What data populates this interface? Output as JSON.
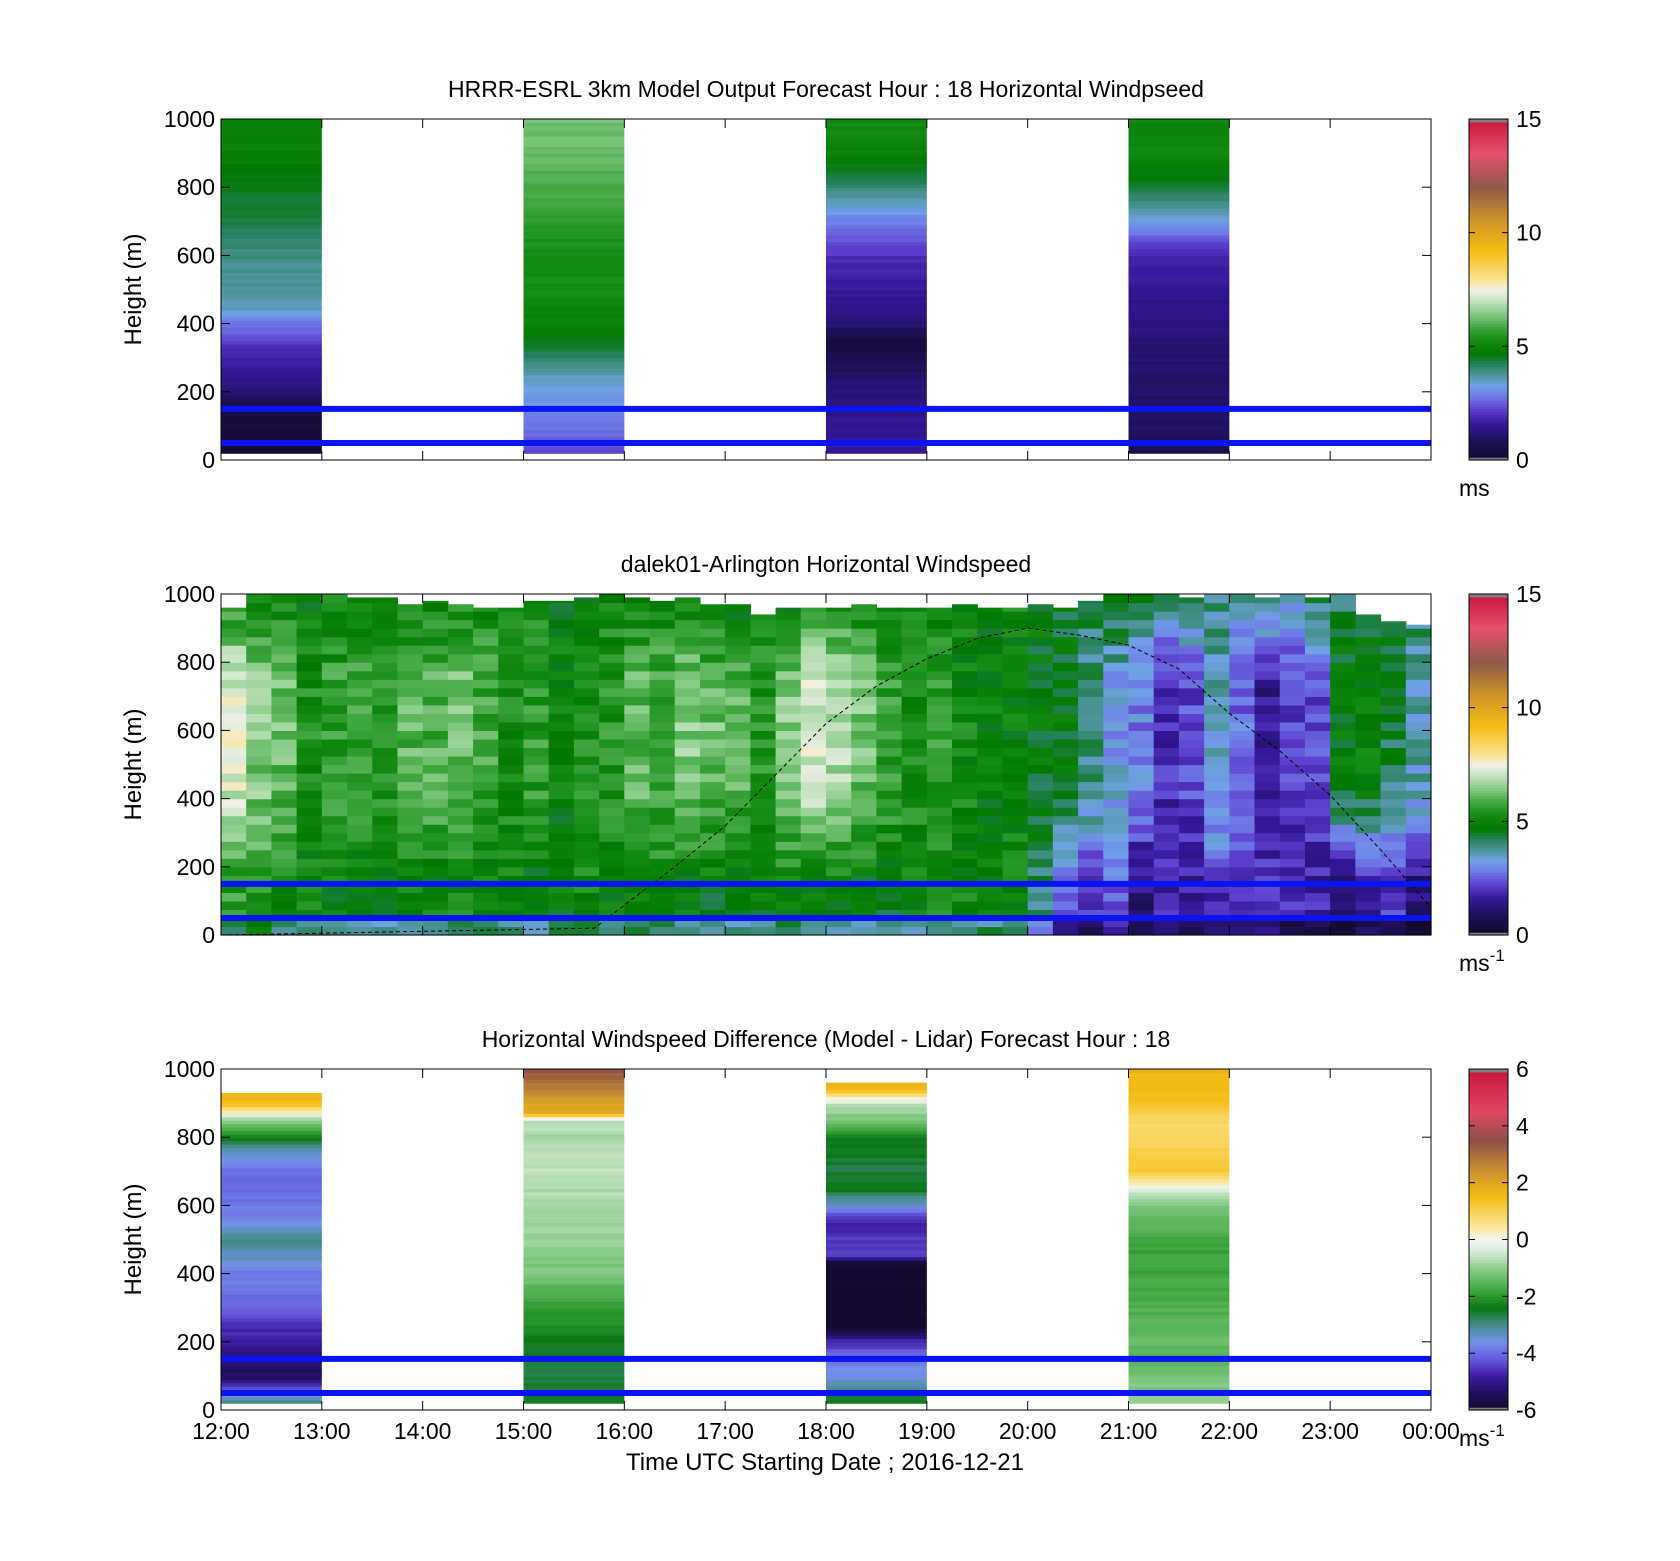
{
  "chart_data": [
    {
      "type": "heatmap",
      "title": "HRRR-ESRL 3km Model Output   Forecast Hour : 18 Horizontal Windpseed",
      "ylabel": "Height (m)",
      "ylim": [
        0,
        1000
      ],
      "y_ticks": [
        "0",
        "200",
        "400",
        "600",
        "800",
        "1000"
      ],
      "x_ticks": [
        "12:00",
        "13:00",
        "14:00",
        "15:00",
        "16:00",
        "17:00",
        "18:00",
        "19:00",
        "20:00",
        "21:00",
        "22:00",
        "23:00",
        "00:00"
      ],
      "xlim_hours": [
        12,
        24
      ],
      "colorbar": {
        "min": 0,
        "max": 15,
        "ticks": [
          "0",
          "5",
          "10",
          "15"
        ],
        "unit": "ms",
        "unit_sup": ""
      },
      "reference_lines_m": [
        150,
        50
      ],
      "columns": [
        {
          "start_hour": 12,
          "end_hour": 13,
          "bottom_m": 20,
          "top_m": 1000,
          "profile": [
            [
              20,
              0.2
            ],
            [
              60,
              0.3
            ],
            [
              150,
              0.4
            ],
            [
              200,
              1.2
            ],
            [
              260,
              1.6
            ],
            [
              330,
              2.0
            ],
            [
              400,
              2.8
            ],
            [
              450,
              3.6
            ],
            [
              600,
              3.9
            ],
            [
              680,
              4.3
            ],
            [
              800,
              4.5
            ],
            [
              900,
              5.0
            ],
            [
              1000,
              5.0
            ]
          ]
        },
        {
          "start_hour": 15,
          "end_hour": 16,
          "bottom_m": 20,
          "top_m": 1000,
          "profile": [
            [
              20,
              2.3
            ],
            [
              100,
              2.8
            ],
            [
              200,
              3.3
            ],
            [
              250,
              3.5
            ],
            [
              300,
              4.2
            ],
            [
              400,
              5.0
            ],
            [
              500,
              5.3
            ],
            [
              600,
              5.3
            ],
            [
              700,
              5.6
            ],
            [
              800,
              5.9
            ],
            [
              900,
              6.2
            ],
            [
              1000,
              6.3
            ]
          ]
        },
        {
          "start_hour": 18,
          "end_hour": 19,
          "bottom_m": 20,
          "top_m": 1000,
          "profile": [
            [
              20,
              1.7
            ],
            [
              150,
              1.4
            ],
            [
              250,
              1.0
            ],
            [
              350,
              0.3
            ],
            [
              400,
              1.2
            ],
            [
              500,
              1.6
            ],
            [
              600,
              2.0
            ],
            [
              700,
              2.9
            ],
            [
              800,
              4.0
            ],
            [
              900,
              5.0
            ],
            [
              1000,
              5.3
            ]
          ]
        },
        {
          "start_hour": 21,
          "end_hour": 22,
          "bottom_m": 20,
          "top_m": 1000,
          "profile": [
            [
              20,
              0.8
            ],
            [
              100,
              0.9
            ],
            [
              300,
              1.1
            ],
            [
              400,
              1.3
            ],
            [
              500,
              1.5
            ],
            [
              600,
              1.8
            ],
            [
              700,
              3.2
            ],
            [
              800,
              4.5
            ],
            [
              900,
              5.1
            ],
            [
              1000,
              5.2
            ]
          ]
        }
      ]
    },
    {
      "type": "heatmap",
      "title": "dalek01-Arlington  Horizontal Windspeed",
      "ylabel": "Height (m)",
      "ylim": [
        0,
        1000
      ],
      "y_ticks": [
        "0",
        "200",
        "400",
        "600",
        "800",
        "1000"
      ],
      "x_ticks": [
        "12:00",
        "13:00",
        "14:00",
        "15:00",
        "16:00",
        "17:00",
        "18:00",
        "19:00",
        "20:00",
        "21:00",
        "22:00",
        "23:00",
        "00:00"
      ],
      "xlim_hours": [
        12,
        24
      ],
      "colorbar": {
        "min": 0,
        "max": 15,
        "ticks": [
          "0",
          "5",
          "10",
          "15"
        ],
        "unit": "ms",
        "unit_sup": "-1"
      },
      "reference_lines_m": [
        150,
        50
      ],
      "time_start_hour": 12,
      "time_step_hours": 0.25,
      "height_bin_m": 25,
      "column_top_m": [
        960,
        1000,
        1000,
        1000,
        1000,
        990,
        990,
        970,
        980,
        970,
        960,
        960,
        980,
        980,
        990,
        1000,
        990,
        980,
        990,
        970,
        970,
        940,
        960,
        960,
        960,
        970,
        960,
        960,
        960,
        970,
        960,
        960,
        970,
        960,
        980,
        1000,
        1000,
        1000,
        990,
        1000,
        1000,
        990,
        1000,
        990,
        1000,
        940,
        920,
        910
      ],
      "surface_speed_ms": [
        5.6,
        5.6,
        5.2,
        5.0,
        5.0,
        4.8,
        4.8,
        5.0,
        5.0,
        5.1,
        4.9,
        4.9,
        4.8,
        4.9,
        5.1,
        5.0,
        5.0,
        5.0,
        4.8,
        4.8,
        4.8,
        4.9,
        5.0,
        4.8,
        4.9,
        4.8,
        4.7,
        5.0,
        5.2,
        5.1,
        5.0,
        5.0,
        4.0,
        2.5,
        2.0,
        2.6,
        1.3,
        1.8,
        1.7,
        2.0,
        2.2,
        2.1,
        1.8,
        1.7,
        1.0,
        1.8,
        2.0,
        1.2
      ],
      "mid_speed_ms": [
        7.3,
        6.4,
        6.2,
        5.3,
        5.6,
        5.8,
        5.4,
        6.0,
        5.9,
        6.2,
        5.8,
        5.3,
        5.6,
        4.9,
        5.3,
        5.5,
        6.1,
        5.9,
        6.4,
        6.2,
        6.0,
        5.4,
        6.5,
        7.2,
        6.8,
        6.3,
        5.7,
        5.3,
        5.5,
        5.1,
        4.9,
        5.0,
        4.7,
        4.6,
        4.0,
        3.3,
        2.9,
        1.9,
        2.3,
        3.6,
        2.7,
        1.6,
        2.3,
        2.4,
        4.9,
        4.9,
        4.3,
        3.6
      ],
      "upper_speed_ms": [
        5.1,
        5.2,
        4.9,
        4.8,
        5.0,
        5.0,
        4.8,
        4.9,
        5.0,
        5.1,
        5.1,
        5.0,
        5.0,
        4.9,
        4.9,
        5.0,
        4.9,
        5.0,
        5.1,
        4.8,
        4.7,
        4.9,
        4.8,
        4.8,
        5.0,
        4.8,
        4.9,
        5.2,
        4.9,
        5.0,
        4.8,
        5.1,
        4.7,
        4.6,
        4.2,
        4.8,
        4.4,
        4.1,
        4.3,
        4.0,
        3.8,
        4.4,
        3.6,
        4.3,
        4.0,
        4.1,
        4.6,
        4.2
      ],
      "dashed_curve_m": [
        [
          12.0,
          0
        ],
        [
          15.7,
          20
        ],
        [
          16.5,
          200
        ],
        [
          17.0,
          320
        ],
        [
          17.5,
          470
        ],
        [
          18.0,
          620
        ],
        [
          18.5,
          730
        ],
        [
          19.0,
          810
        ],
        [
          19.5,
          870
        ],
        [
          20.0,
          900
        ],
        [
          20.5,
          880
        ],
        [
          21.0,
          850
        ],
        [
          21.5,
          780
        ],
        [
          22.0,
          650
        ],
        [
          22.5,
          540
        ],
        [
          23.0,
          410
        ],
        [
          23.5,
          250
        ],
        [
          24.0,
          80
        ]
      ]
    },
    {
      "type": "heatmap",
      "title": "Horizontal Windspeed Difference (Model - Lidar) Forecast Hour : 18",
      "ylabel": "Height (m)",
      "xlabel": "Time UTC  Starting Date ; 2016-12-21",
      "ylim": [
        0,
        1000
      ],
      "y_ticks": [
        "0",
        "200",
        "400",
        "600",
        "800",
        "1000"
      ],
      "x_ticks": [
        "12:00",
        "13:00",
        "14:00",
        "15:00",
        "16:00",
        "17:00",
        "18:00",
        "19:00",
        "20:00",
        "21:00",
        "22:00",
        "23:00",
        "00:00"
      ],
      "xlim_hours": [
        12,
        24
      ],
      "colorbar": {
        "min": -6,
        "max": 6,
        "ticks": [
          "-6",
          "-4",
          "-2",
          "0",
          "2",
          "4",
          "6"
        ],
        "unit": "ms",
        "unit_sup": "-1"
      },
      "reference_lines_m": [
        150,
        50
      ],
      "columns": [
        {
          "start_hour": 12,
          "end_hour": 13,
          "bottom_m": 20,
          "top_m": 930,
          "profile": [
            [
              20,
              -2.8
            ],
            [
              100,
              -5.4
            ],
            [
              150,
              -5.2
            ],
            [
              200,
              -4.8
            ],
            [
              250,
              -4.6
            ],
            [
              300,
              -4.0
            ],
            [
              400,
              -3.8
            ],
            [
              450,
              -3.3
            ],
            [
              500,
              -3.0
            ],
            [
              550,
              -3.6
            ],
            [
              600,
              -3.9
            ],
            [
              700,
              -4.0
            ],
            [
              750,
              -3.5
            ],
            [
              800,
              -2.4
            ],
            [
              830,
              -1.5
            ],
            [
              860,
              -0.5
            ],
            [
              900,
              1.6
            ],
            [
              930,
              1.6
            ]
          ]
        },
        {
          "start_hour": 15,
          "end_hour": 16,
          "bottom_m": 20,
          "top_m": 1000,
          "profile": [
            [
              20,
              -2.4
            ],
            [
              100,
              -2.6
            ],
            [
              200,
              -2.4
            ],
            [
              300,
              -1.9
            ],
            [
              400,
              -1.2
            ],
            [
              500,
              -0.9
            ],
            [
              600,
              -0.8
            ],
            [
              700,
              -0.6
            ],
            [
              800,
              -0.8
            ],
            [
              850,
              -0.6
            ],
            [
              870,
              1.8
            ],
            [
              930,
              2.4
            ],
            [
              970,
              3.2
            ],
            [
              1000,
              3.4
            ]
          ]
        },
        {
          "start_hour": 18,
          "end_hour": 19,
          "bottom_m": 20,
          "top_m": 960,
          "profile": [
            [
              20,
              -2.2
            ],
            [
              100,
              -3.6
            ],
            [
              150,
              -3.8
            ],
            [
              200,
              -4.6
            ],
            [
              240,
              -6.0
            ],
            [
              250,
              -6.0
            ],
            [
              420,
              -6.0
            ],
            [
              440,
              -5.8
            ],
            [
              450,
              -4.4
            ],
            [
              480,
              -4.6
            ],
            [
              500,
              -4.5
            ],
            [
              550,
              -4.8
            ],
            [
              600,
              -3.5
            ],
            [
              650,
              -2.4
            ],
            [
              700,
              -2.6
            ],
            [
              800,
              -2.4
            ],
            [
              850,
              -1.2
            ],
            [
              900,
              -0.6
            ],
            [
              940,
              1.6
            ],
            [
              960,
              1.6
            ]
          ]
        },
        {
          "start_hour": 21,
          "end_hour": 22,
          "bottom_m": 20,
          "top_m": 1000,
          "profile": [
            [
              20,
              -0.8
            ],
            [
              150,
              -1.6
            ],
            [
              200,
              -1.4
            ],
            [
              300,
              -1.6
            ],
            [
              400,
              -1.8
            ],
            [
              500,
              -1.8
            ],
            [
              600,
              -1.2
            ],
            [
              650,
              -0.2
            ],
            [
              700,
              1.2
            ],
            [
              800,
              1.0
            ],
            [
              850,
              0.8
            ],
            [
              900,
              1.3
            ],
            [
              950,
              1.6
            ],
            [
              1000,
              1.7
            ]
          ]
        }
      ]
    }
  ]
}
